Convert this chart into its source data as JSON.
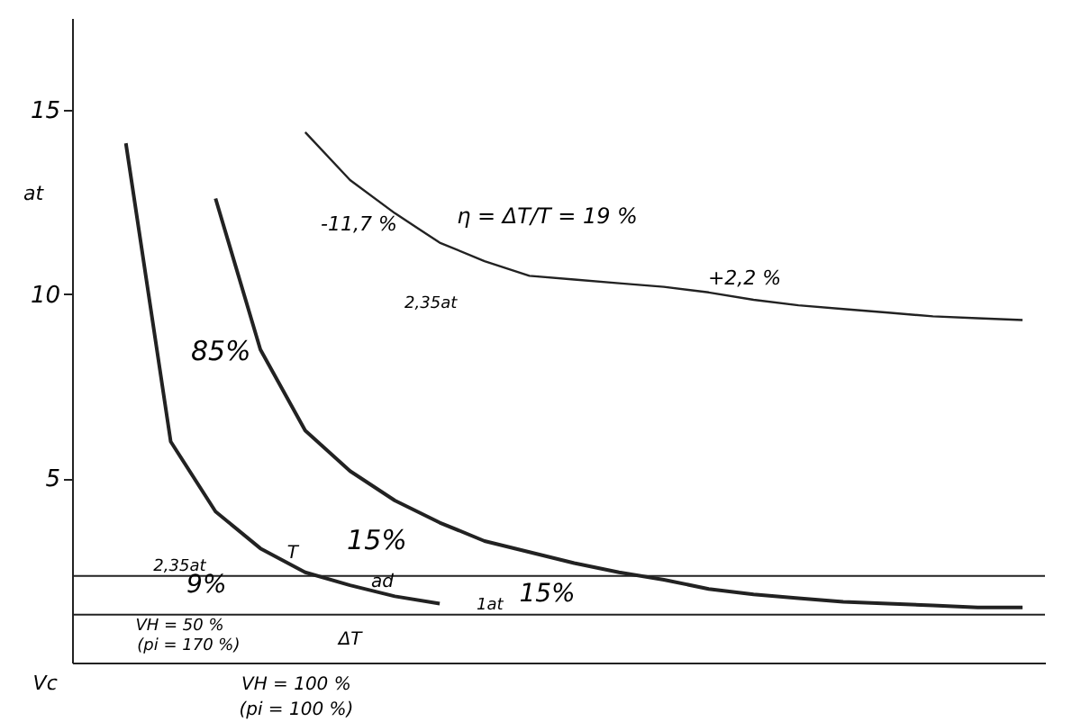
{
  "chart_data": {
    "type": "line",
    "ylabel": "at",
    "categories": [
      null,
      null,
      null,
      null,
      null,
      null,
      null,
      null,
      null,
      null,
      null,
      null,
      null,
      null,
      null,
      null,
      null,
      null,
      null,
      null,
      null,
      null
    ],
    "series": [
      {
        "color": "#222222",
        "values": [
          null,
          14.1,
          6.0,
          4.1,
          3.1,
          2.45,
          2.1,
          1.8,
          1.6,
          null,
          null,
          null,
          null,
          null,
          null,
          null,
          null,
          null,
          null,
          null,
          null,
          null
        ]
      },
      {
        "color": "#222222",
        "values": [
          null,
          null,
          null,
          12.6,
          8.5,
          6.3,
          5.2,
          4.4,
          3.8,
          3.3,
          3.0,
          2.7,
          2.45,
          2.25,
          2.0,
          1.85,
          1.75,
          1.65,
          1.6,
          1.55,
          1.5,
          1.5
        ]
      },
      {
        "color": "#222222",
        "values": [
          null,
          null,
          null,
          null,
          null,
          14.4,
          13.1,
          12.2,
          11.4,
          10.9,
          10.5,
          10.4,
          10.3,
          10.2,
          10.05,
          9.85,
          9.7,
          9.6,
          9.5,
          9.4,
          9.35,
          9.3
        ]
      }
    ],
    "ylim": [
      0,
      17.5
    ],
    "yticks": [
      5,
      10,
      15
    ],
    "grid": false,
    "marker": "none",
    "line_style": "solid",
    "tick_labels": "y",
    "ref_lines": [
      {
        "axis": "y",
        "value": 2.35,
        "label": "2,35at"
      },
      {
        "axis": "y",
        "value": 1.3,
        "label": "1at"
      }
    ],
    "annotations": [
      "85%",
      "15%",
      "9%",
      "15%",
      "T",
      "ΔT",
      "ad",
      "-11,7 %",
      "2,35at",
      "η = ΔT/T = 19 %",
      "+2,2 %",
      "VH = 50 %",
      "(pi = 170 %)",
      "VH = 100 %",
      "(pi = 100 %)",
      "Vc"
    ]
  }
}
